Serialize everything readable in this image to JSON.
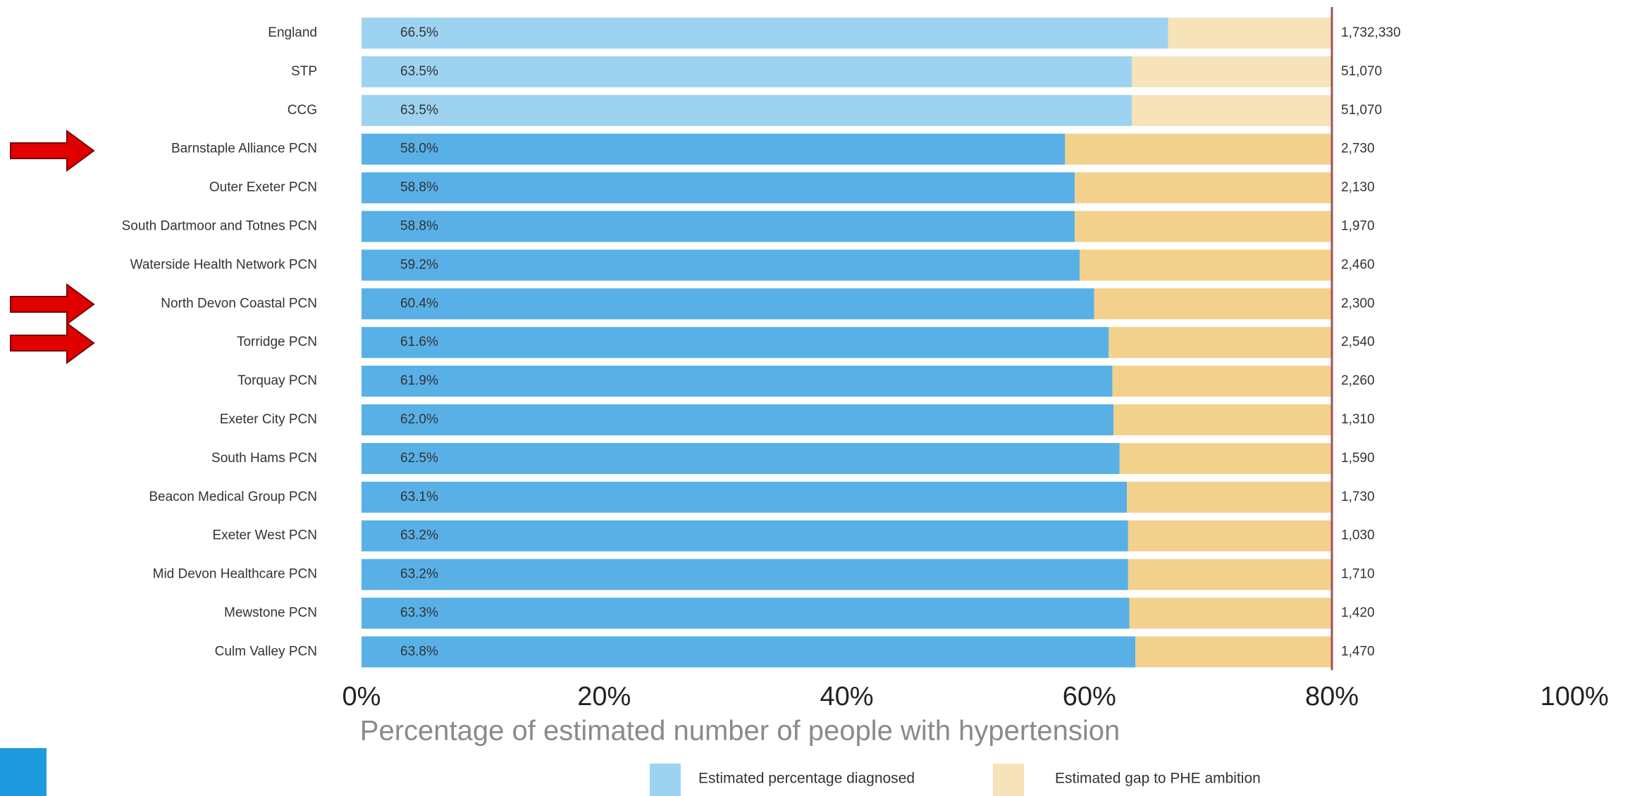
{
  "chart_data": {
    "type": "stacked-bar-horizontal",
    "categories": [
      "England",
      "STP",
      "CCG",
      "Barnstaple Alliance PCN",
      "Outer Exeter PCN",
      "South Dartmoor and Totnes PCN",
      "Waterside Health Network PCN",
      "North Devon Coastal PCN",
      "Torridge PCN",
      "Torquay PCN",
      "Exeter City PCN",
      "South Hams PCN",
      "Beacon Medical Group PCN",
      "Exeter West PCN",
      "Mid Devon Healthcare PCN",
      "Mewstone PCN",
      "Culm Valley PCN"
    ],
    "series": [
      {
        "name": "Estimated percentage diagnosed",
        "color": "#58b0e6",
        "colors": [
          "#9dd3f0",
          "#9dd3f0",
          "#9dd3f0",
          "#58b0e6",
          "#58b0e6",
          "#58b0e6",
          "#58b0e6",
          "#58b0e6",
          "#58b0e6",
          "#58b0e6",
          "#58b0e6",
          "#58b0e6",
          "#58b0e6",
          "#58b0e6",
          "#58b0e6",
          "#58b0e6",
          "#58b0e6"
        ],
        "values": [
          66.5,
          63.5,
          63.5,
          58.0,
          58.8,
          58.8,
          59.2,
          60.4,
          61.6,
          61.9,
          62.0,
          62.5,
          63.1,
          63.2,
          63.2,
          63.3,
          63.8
        ],
        "value_labels": [
          "66.5%",
          "63.5%",
          "63.5%",
          "58.0%",
          "58.8%",
          "58.8%",
          "59.2%",
          "60.4%",
          "61.6%",
          "61.9%",
          "62.0%",
          "62.5%",
          "63.1%",
          "63.2%",
          "63.2%",
          "63.3%",
          "63.8%"
        ]
      },
      {
        "name": "Estimated gap to PHE ambition",
        "color": "#f2d18c",
        "colors": [
          "#f6e3b9",
          "#f6e3b9",
          "#f6e3b9",
          "#f2d18c",
          "#f2d18c",
          "#f2d18c",
          "#f2d18c",
          "#f2d18c",
          "#f2d18c",
          "#f2d18c",
          "#f2d18c",
          "#f2d18c",
          "#f2d18c",
          "#f2d18c",
          "#f2d18c",
          "#f2d18c",
          "#f2d18c"
        ],
        "values": [
          13.5,
          16.5,
          16.5,
          22.0,
          21.2,
          21.2,
          20.8,
          19.6,
          18.4,
          18.1,
          18.0,
          17.5,
          16.9,
          16.8,
          16.8,
          16.7,
          16.2
        ]
      }
    ],
    "right_labels": {
      "values": [
        1732330,
        51070,
        51070,
        2730,
        2130,
        1970,
        2460,
        2300,
        2540,
        2260,
        1310,
        1590,
        1730,
        1030,
        1710,
        1420,
        1470
      ],
      "value_labels": [
        "1,732,330",
        "51,070",
        "51,070",
        "2,730",
        "2,130",
        "1,970",
        "2,460",
        "2,300",
        "2,540",
        "2,260",
        "1,310",
        "1,590",
        "1,730",
        "1,030",
        "1,710",
        "1,420",
        "1,470"
      ]
    },
    "reference_line": {
      "value": 80,
      "color": "#a0505a"
    },
    "xlabel": "Percentage of estimated number of people with hypertension",
    "xlim": [
      0,
      100
    ],
    "xticks": [
      {
        "value": 0,
        "label": "0%"
      },
      {
        "value": 20,
        "label": "20%"
      },
      {
        "value": 40,
        "label": "40%"
      },
      {
        "value": 60,
        "label": "60%"
      },
      {
        "value": 80,
        "label": "80%"
      },
      {
        "value": 100,
        "label": "100%"
      }
    ]
  }
}
